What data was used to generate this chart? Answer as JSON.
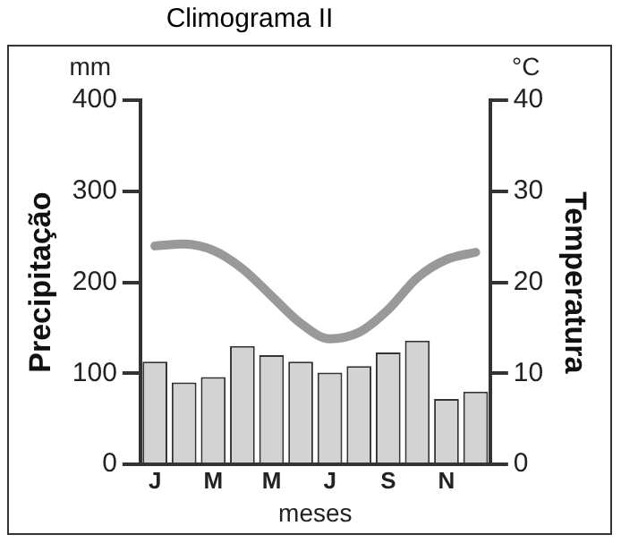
{
  "chart_data": {
    "type": "bar",
    "title": "Climograma II",
    "xlabel": "meses",
    "ylabel": "Precipitação",
    "y2label": "Temperatura",
    "annotations": [
      "mm",
      "°C"
    ],
    "categories": [
      "J",
      null,
      "M",
      null,
      "M",
      null,
      "J",
      null,
      "S",
      null,
      "N",
      null
    ],
    "series": [
      {
        "color": "#d3d3d3",
        "values": [
          113,
          90,
          96,
          130,
          120,
          113,
          101,
          108,
          123,
          136,
          72,
          80
        ]
      },
      {
        "type": "line",
        "axis": "y2",
        "color": "#999999",
        "marker": "none",
        "values": [
          24,
          24.2,
          23.5,
          21.5,
          18.5,
          15.5,
          13.8,
          14.5,
          17,
          20.5,
          22.5,
          23.3
        ]
      }
    ],
    "ylim": [
      0,
      400
    ],
    "yticks": [
      0,
      100,
      200,
      300,
      400
    ],
    "y2lim": [
      0,
      40
    ],
    "y2ticks": [
      0,
      10,
      20,
      30,
      40
    ],
    "grid": false,
    "legend": false
  }
}
